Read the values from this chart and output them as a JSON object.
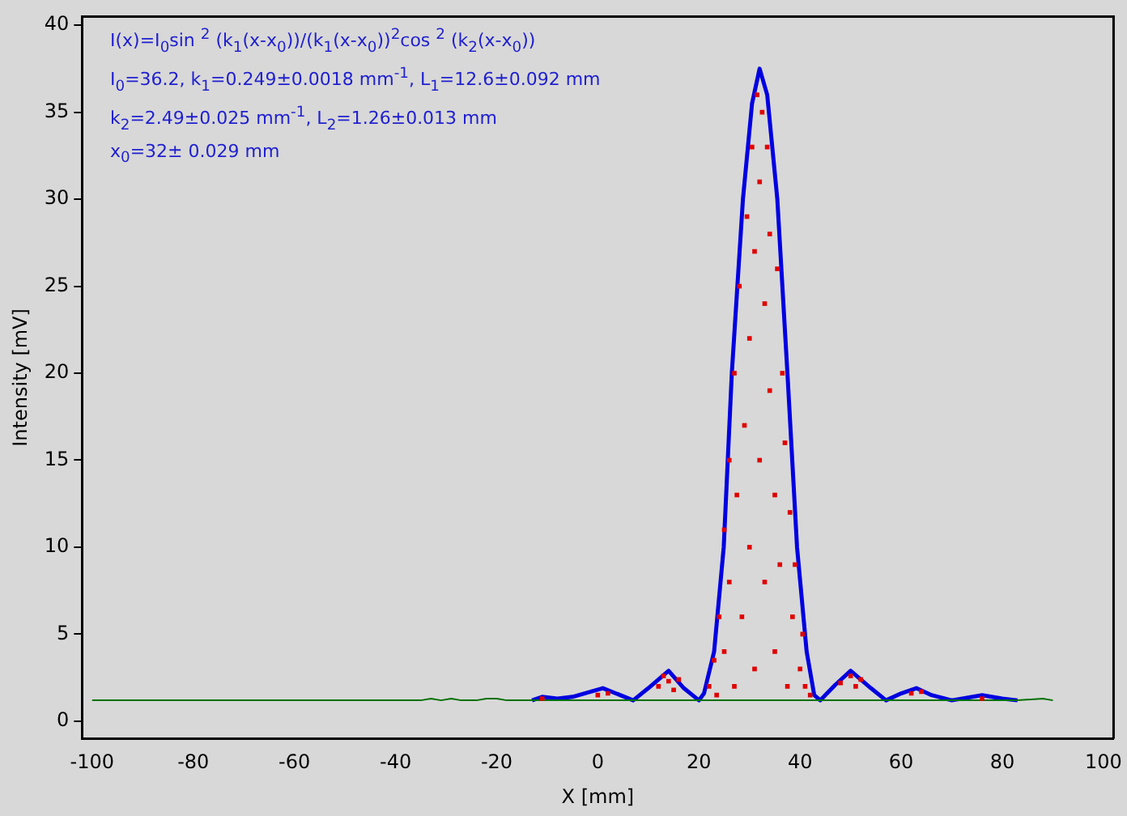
{
  "chart_data": {
    "type": "line",
    "xlabel": "X [mm]",
    "ylabel": "Intensity [mV]",
    "annotations": [
      "I(x)=I$_{0}$sin $^{2}$ (k$_{1}$(x-x$_{0}$))/(k$_{1}$(x-x$_{0}$))$^{2}$cos $^{2}$ (k$_{2}$(x-x$_{0}$))",
      "I$_{0}$=36.2,  k$_{1}$=0.249±0.0018 mm$^{-1}$,   L$_{1}$=12.6±0.092 mm",
      "k$_{2}$=2.49±0.025 mm$^{-1}$,   L$_{2}$=1.26±0.013 mm",
      "x$_{0}$=32±  0.029 mm"
    ],
    "xlim": [
      -102,
      102
    ],
    "xticks": [
      -100,
      -80,
      -60,
      -40,
      -20,
      0,
      20,
      40,
      60,
      80,
      100
    ],
    "ylim": [
      -1,
      40.5
    ],
    "yticks": [
      0,
      5,
      10,
      15,
      20,
      25,
      30,
      35,
      40
    ],
    "grid": false,
    "legend": false,
    "series": [
      {
        "type": "line",
        "color": "#007000",
        "x": [
          -100,
          -35,
          -33,
          -31,
          -29,
          -27,
          -24,
          -22,
          -20,
          -18,
          -13,
          83,
          88,
          90
        ],
        "values": [
          1.2,
          1.2,
          1.3,
          1.2,
          1.3,
          1.2,
          1.2,
          1.3,
          1.3,
          1.2,
          1.2,
          1.2,
          1.3,
          1.2
        ]
      },
      {
        "type": "scatter",
        "marker": "square",
        "color": "#e00000",
        "x": [
          22,
          23,
          23.5,
          24,
          25,
          25,
          26,
          26,
          27,
          27,
          27.5,
          28,
          28.5,
          29,
          29.5,
          30,
          30,
          30.5,
          31,
          31,
          31.5,
          32,
          32,
          32.5,
          33,
          33,
          33.5,
          34,
          34,
          35,
          35,
          35.5,
          36,
          36.5,
          37,
          37.5,
          38,
          38.5,
          39,
          40,
          40.5,
          41,
          42,
          0,
          2,
          12,
          13,
          14,
          15,
          16,
          48,
          50,
          51,
          52,
          62,
          64,
          -11,
          76
        ],
        "values": [
          2,
          3.5,
          1.5,
          6,
          4,
          11,
          8,
          15,
          2,
          20,
          13,
          25,
          6,
          17,
          29,
          10,
          22,
          33,
          3,
          27,
          36,
          15,
          31,
          35,
          8,
          24,
          33,
          19,
          28,
          4,
          13,
          26,
          9,
          20,
          16,
          2,
          12,
          6,
          9,
          3,
          5,
          2,
          1.5,
          1.5,
          1.6,
          2,
          2.6,
          2.3,
          1.8,
          2.4,
          2.2,
          2.6,
          2,
          2.4,
          1.6,
          1.7,
          1.3,
          1.3
        ]
      },
      {
        "color": "#0000e0",
        "x": [
          -13,
          -11,
          -8,
          -5,
          1,
          7,
          10,
          14,
          17,
          20,
          21,
          23,
          24.9,
          26.5,
          28.7,
          30.5,
          32,
          33.5,
          35.5,
          37.5,
          39.4,
          41.3,
          42.8,
          44,
          47,
          50,
          54,
          57,
          60,
          63,
          66,
          70,
          76,
          80,
          83
        ],
        "values": [
          1.2,
          1.4,
          1.3,
          1.4,
          1.9,
          1.2,
          1.9,
          2.9,
          1.9,
          1.2,
          1.6,
          4,
          10,
          20,
          30,
          35.5,
          37.5,
          36,
          30,
          20,
          10,
          4,
          1.5,
          1.2,
          2.1,
          2.9,
          1.9,
          1.2,
          1.6,
          1.9,
          1.5,
          1.2,
          1.5,
          1.3,
          1.2
        ]
      }
    ]
  }
}
